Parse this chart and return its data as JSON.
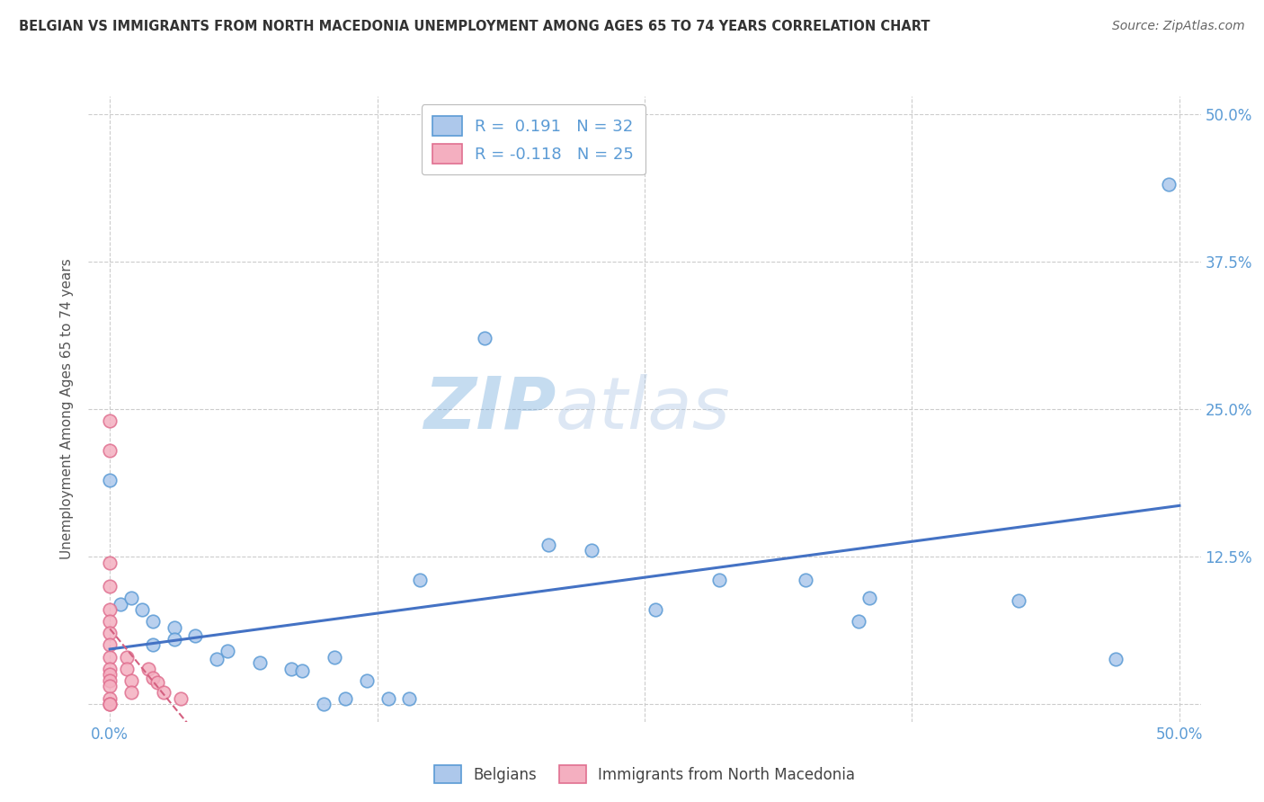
{
  "title": "BELGIAN VS IMMIGRANTS FROM NORTH MACEDONIA UNEMPLOYMENT AMONG AGES 65 TO 74 YEARS CORRELATION CHART",
  "source": "Source: ZipAtlas.com",
  "ylabel": "Unemployment Among Ages 65 to 74 years",
  "xlim": [
    -0.01,
    0.51
  ],
  "ylim": [
    -0.015,
    0.515
  ],
  "xtick_positions": [
    0.0,
    0.125,
    0.25,
    0.375,
    0.5
  ],
  "xticklabels": [
    "0.0%",
    "",
    "",
    "",
    "50.0%"
  ],
  "ytick_positions": [
    0.0,
    0.125,
    0.25,
    0.375,
    0.5
  ],
  "yticklabels_right": [
    "",
    "12.5%",
    "25.0%",
    "37.5%",
    "50.0%"
  ],
  "belgian_face": "#adc8eb",
  "belgian_edge": "#5b9bd5",
  "immigrant_face": "#f4afc0",
  "immigrant_edge": "#e07090",
  "trend_belgian_color": "#4472c4",
  "trend_immigrant_color": "#d46080",
  "R_belgian": 0.191,
  "N_belgian": 32,
  "R_immigrant": -0.118,
  "N_immigrant": 25,
  "belgian_points": [
    [
      0.0,
      0.19
    ],
    [
      0.005,
      0.085
    ],
    [
      0.01,
      0.09
    ],
    [
      0.015,
      0.08
    ],
    [
      0.02,
      0.07
    ],
    [
      0.02,
      0.05
    ],
    [
      0.03,
      0.065
    ],
    [
      0.03,
      0.055
    ],
    [
      0.04,
      0.058
    ],
    [
      0.05,
      0.038
    ],
    [
      0.055,
      0.045
    ],
    [
      0.07,
      0.035
    ],
    [
      0.085,
      0.03
    ],
    [
      0.09,
      0.028
    ],
    [
      0.1,
      0.0
    ],
    [
      0.105,
      0.04
    ],
    [
      0.11,
      0.005
    ],
    [
      0.12,
      0.02
    ],
    [
      0.13,
      0.005
    ],
    [
      0.14,
      0.005
    ],
    [
      0.145,
      0.105
    ],
    [
      0.175,
      0.31
    ],
    [
      0.205,
      0.135
    ],
    [
      0.225,
      0.13
    ],
    [
      0.255,
      0.08
    ],
    [
      0.285,
      0.105
    ],
    [
      0.325,
      0.105
    ],
    [
      0.355,
      0.09
    ],
    [
      0.35,
      0.07
    ],
    [
      0.425,
      0.088
    ],
    [
      0.47,
      0.038
    ],
    [
      0.495,
      0.44
    ]
  ],
  "immigrant_points": [
    [
      0.0,
      0.24
    ],
    [
      0.0,
      0.215
    ],
    [
      0.0,
      0.12
    ],
    [
      0.0,
      0.1
    ],
    [
      0.0,
      0.08
    ],
    [
      0.0,
      0.07
    ],
    [
      0.0,
      0.06
    ],
    [
      0.0,
      0.05
    ],
    [
      0.0,
      0.04
    ],
    [
      0.0,
      0.03
    ],
    [
      0.0,
      0.025
    ],
    [
      0.0,
      0.02
    ],
    [
      0.0,
      0.015
    ],
    [
      0.0,
      0.005
    ],
    [
      0.0,
      0.0
    ],
    [
      0.0,
      0.0
    ],
    [
      0.008,
      0.04
    ],
    [
      0.008,
      0.03
    ],
    [
      0.01,
      0.02
    ],
    [
      0.01,
      0.01
    ],
    [
      0.018,
      0.03
    ],
    [
      0.02,
      0.022
    ],
    [
      0.022,
      0.018
    ],
    [
      0.025,
      0.01
    ],
    [
      0.033,
      0.005
    ]
  ],
  "grid_color": "#cccccc",
  "background_color": "#ffffff",
  "watermark_zip_color": "#5b9bd5",
  "watermark_atlas_color": "#9fbde0",
  "title_color": "#333333",
  "source_color": "#666666",
  "axis_label_color": "#5b9bd5",
  "ylabel_color": "#555555",
  "point_size": 110
}
